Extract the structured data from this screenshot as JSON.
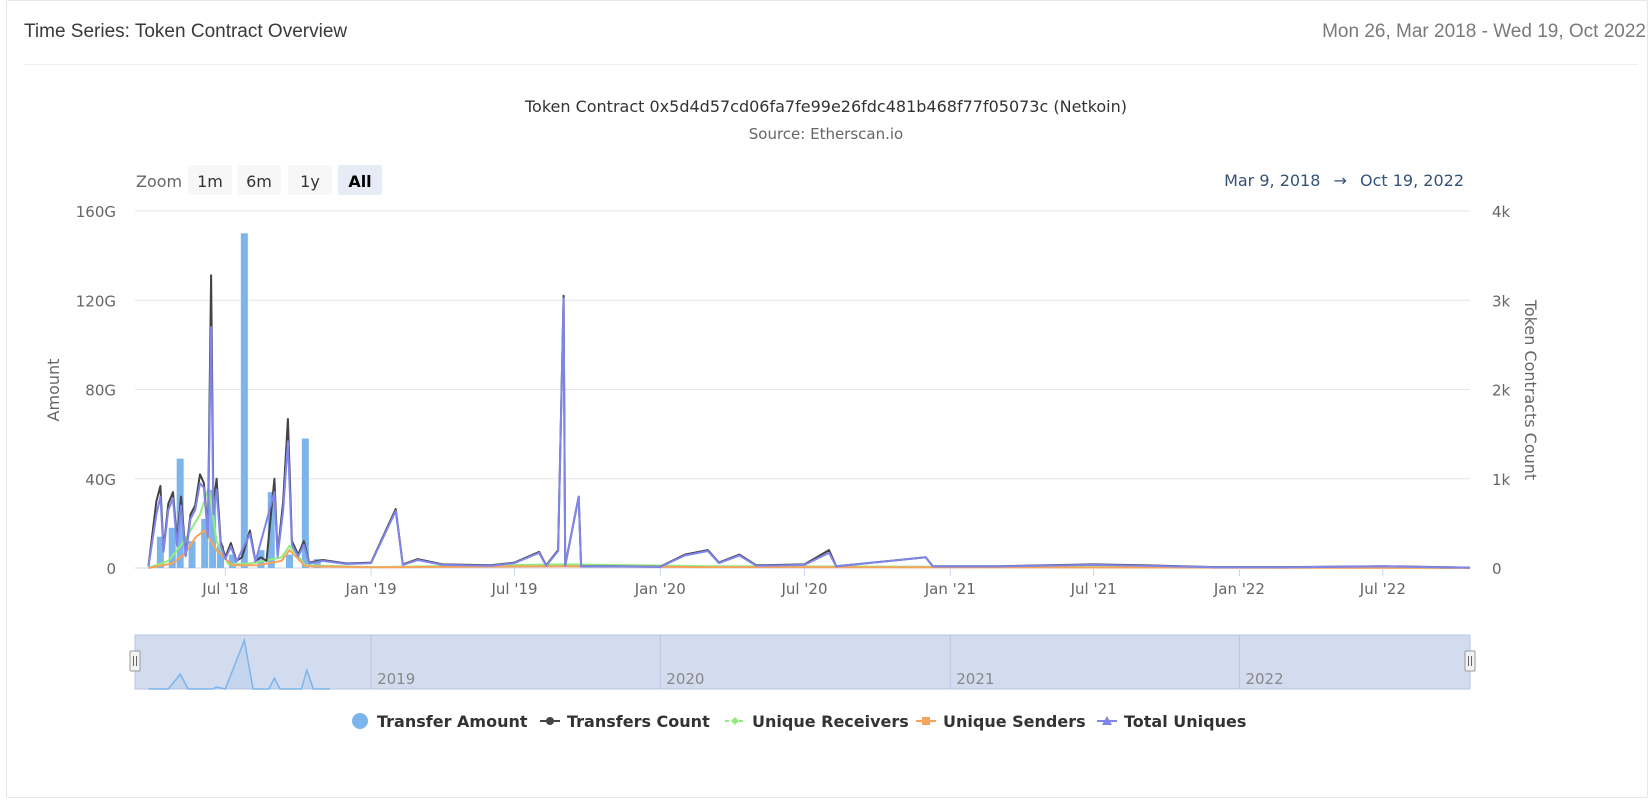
{
  "header": {
    "title": "Time Series: Token Contract Overview",
    "date_range": "Mon 26, Mar 2018 - Wed 19, Oct 2022"
  },
  "zoom": {
    "label": "Zoom",
    "buttons": [
      "1m",
      "6m",
      "1y",
      "All"
    ],
    "active": "All",
    "range_from": "Mar 9, 2018",
    "arrow": "→",
    "range_to": "Oct 19, 2022"
  },
  "colors": {
    "transfer_amount": "#7cb5ec",
    "transfers_count": "#434348",
    "unique_receivers": "#90ed7d",
    "unique_senders": "#f7a35c",
    "total_uniques": "#8085e9",
    "navigator_fill": "#d3dbee"
  },
  "chart_data": {
    "type": "line",
    "title": "Token Contract 0x5d4d57cd06fa7fe99e26fdc481b468f77f05073c (Netkoin)",
    "subtitle": "Source: Etherscan.io",
    "ylabel_left": "Amount",
    "ylabel_right": "Token Contracts Count",
    "x_range": [
      "2018-03-09",
      "2022-10-19"
    ],
    "y_left_range": [
      0,
      160
    ],
    "y_left_unit": "G",
    "y_right_range": [
      0,
      4000
    ],
    "y_left_ticks": [
      "0",
      "40G",
      "80G",
      "120G",
      "160G"
    ],
    "y_right_ticks": [
      "0",
      "1k",
      "2k",
      "3k",
      "4k"
    ],
    "x_ticks": [
      {
        "date": "2018-07-01",
        "label": "Jul '18"
      },
      {
        "date": "2019-01-01",
        "label": "Jan '19"
      },
      {
        "date": "2019-07-01",
        "label": "Jul '19"
      },
      {
        "date": "2020-01-01",
        "label": "Jan '20"
      },
      {
        "date": "2020-07-01",
        "label": "Jul '20"
      },
      {
        "date": "2021-01-01",
        "label": "Jan '21"
      },
      {
        "date": "2021-07-01",
        "label": "Jul '21"
      },
      {
        "date": "2022-01-01",
        "label": "Jan '22"
      },
      {
        "date": "2022-07-01",
        "label": "Jul '22"
      }
    ],
    "navigator_ticks": [
      {
        "date": "2019-01-01",
        "label": "2019"
      },
      {
        "date": "2020-01-01",
        "label": "2020"
      },
      {
        "date": "2021-01-01",
        "label": "2021"
      },
      {
        "date": "2022-01-01",
        "label": "2022"
      }
    ],
    "series": [
      {
        "name": "Transfer Amount",
        "kind": "column",
        "axis": "left",
        "unit": "G",
        "points": [
          [
            "2018-04-10",
            14
          ],
          [
            "2018-04-25",
            18
          ],
          [
            "2018-05-05",
            49
          ],
          [
            "2018-05-20",
            12
          ],
          [
            "2018-06-05",
            22
          ],
          [
            "2018-06-15",
            35
          ],
          [
            "2018-06-25",
            10
          ],
          [
            "2018-07-10",
            6
          ],
          [
            "2018-07-25",
            150
          ],
          [
            "2018-08-15",
            8
          ],
          [
            "2018-08-28",
            34
          ],
          [
            "2018-09-20",
            6
          ],
          [
            "2018-10-10",
            58
          ],
          [
            "2018-10-25",
            4
          ]
        ]
      },
      {
        "name": "Transfers Count",
        "kind": "line",
        "axis": "right",
        "points": [
          [
            "2018-03-26",
            20
          ],
          [
            "2018-04-05",
            750
          ],
          [
            "2018-04-10",
            920
          ],
          [
            "2018-04-14",
            200
          ],
          [
            "2018-04-20",
            720
          ],
          [
            "2018-04-26",
            850
          ],
          [
            "2018-05-01",
            300
          ],
          [
            "2018-05-06",
            800
          ],
          [
            "2018-05-12",
            150
          ],
          [
            "2018-05-18",
            600
          ],
          [
            "2018-05-24",
            700
          ],
          [
            "2018-05-30",
            1050
          ],
          [
            "2018-06-04",
            950
          ],
          [
            "2018-06-09",
            400
          ],
          [
            "2018-06-13",
            3280
          ],
          [
            "2018-06-16",
            700
          ],
          [
            "2018-06-20",
            1000
          ],
          [
            "2018-06-25",
            300
          ],
          [
            "2018-07-01",
            120
          ],
          [
            "2018-07-08",
            280
          ],
          [
            "2018-07-15",
            80
          ],
          [
            "2018-07-22",
            120
          ],
          [
            "2018-08-01",
            420
          ],
          [
            "2018-08-08",
            80
          ],
          [
            "2018-08-15",
            120
          ],
          [
            "2018-08-22",
            80
          ],
          [
            "2018-09-01",
            1000
          ],
          [
            "2018-09-05",
            150
          ],
          [
            "2018-09-12",
            750
          ],
          [
            "2018-09-18",
            1670
          ],
          [
            "2018-09-23",
            300
          ],
          [
            "2018-10-01",
            150
          ],
          [
            "2018-10-08",
            300
          ],
          [
            "2018-10-15",
            60
          ],
          [
            "2018-11-01",
            90
          ],
          [
            "2018-12-01",
            50
          ],
          [
            "2019-01-01",
            60
          ],
          [
            "2019-02-01",
            660
          ],
          [
            "2019-02-10",
            40
          ],
          [
            "2019-03-01",
            100
          ],
          [
            "2019-04-01",
            40
          ],
          [
            "2019-06-01",
            30
          ],
          [
            "2019-07-01",
            60
          ],
          [
            "2019-08-01",
            180
          ],
          [
            "2019-08-10",
            30
          ],
          [
            "2019-08-25",
            200
          ],
          [
            "2019-09-01",
            3050
          ],
          [
            "2019-09-03",
            30
          ],
          [
            "2019-09-20",
            800
          ],
          [
            "2019-09-23",
            20
          ],
          [
            "2019-11-01",
            20
          ],
          [
            "2020-01-01",
            15
          ],
          [
            "2020-02-01",
            150
          ],
          [
            "2020-03-01",
            200
          ],
          [
            "2020-03-15",
            60
          ],
          [
            "2020-04-10",
            150
          ],
          [
            "2020-05-01",
            30
          ],
          [
            "2020-07-01",
            40
          ],
          [
            "2020-08-01",
            200
          ],
          [
            "2020-08-10",
            20
          ],
          [
            "2020-12-01",
            120
          ],
          [
            "2020-12-10",
            20
          ],
          [
            "2021-03-01",
            20
          ],
          [
            "2021-07-01",
            40
          ],
          [
            "2021-09-01",
            30
          ],
          [
            "2021-12-01",
            10
          ],
          [
            "2022-03-01",
            10
          ],
          [
            "2022-07-01",
            20
          ],
          [
            "2022-10-19",
            5
          ]
        ]
      },
      {
        "name": "Unique Receivers",
        "kind": "line",
        "axis": "right",
        "points": [
          [
            "2018-03-26",
            0
          ],
          [
            "2018-04-20",
            80
          ],
          [
            "2018-05-10",
            300
          ],
          [
            "2018-05-30",
            600
          ],
          [
            "2018-06-10",
            900
          ],
          [
            "2018-06-20",
            300
          ],
          [
            "2018-07-05",
            40
          ],
          [
            "2018-08-01",
            50
          ],
          [
            "2018-09-10",
            120
          ],
          [
            "2018-09-20",
            250
          ],
          [
            "2018-10-10",
            30
          ],
          [
            "2019-01-01",
            10
          ],
          [
            "2019-09-01",
            40
          ],
          [
            "2020-03-01",
            20
          ],
          [
            "2022-10-19",
            2
          ]
        ]
      },
      {
        "name": "Unique Senders",
        "kind": "line",
        "axis": "right",
        "points": [
          [
            "2018-03-26",
            0
          ],
          [
            "2018-04-25",
            50
          ],
          [
            "2018-05-10",
            150
          ],
          [
            "2018-05-25",
            350
          ],
          [
            "2018-06-05",
            420
          ],
          [
            "2018-06-20",
            200
          ],
          [
            "2018-07-10",
            30
          ],
          [
            "2018-08-10",
            30
          ],
          [
            "2018-09-10",
            80
          ],
          [
            "2018-09-20",
            200
          ],
          [
            "2018-10-10",
            20
          ],
          [
            "2019-01-01",
            8
          ],
          [
            "2019-09-01",
            20
          ],
          [
            "2020-03-01",
            10
          ],
          [
            "2022-10-19",
            1
          ]
        ]
      },
      {
        "name": "Total Uniques",
        "kind": "line",
        "axis": "right",
        "points": [
          [
            "2018-03-26",
            15
          ],
          [
            "2018-04-05",
            600
          ],
          [
            "2018-04-10",
            800
          ],
          [
            "2018-04-14",
            180
          ],
          [
            "2018-04-20",
            650
          ],
          [
            "2018-04-26",
            780
          ],
          [
            "2018-05-01",
            250
          ],
          [
            "2018-05-06",
            700
          ],
          [
            "2018-05-12",
            130
          ],
          [
            "2018-05-18",
            550
          ],
          [
            "2018-05-24",
            650
          ],
          [
            "2018-05-30",
            950
          ],
          [
            "2018-06-04",
            900
          ],
          [
            "2018-06-09",
            350
          ],
          [
            "2018-06-13",
            2700
          ],
          [
            "2018-06-16",
            600
          ],
          [
            "2018-06-20",
            880
          ],
          [
            "2018-06-25",
            260
          ],
          [
            "2018-07-01",
            100
          ],
          [
            "2018-07-08",
            240
          ],
          [
            "2018-07-15",
            70
          ],
          [
            "2018-08-01",
            380
          ],
          [
            "2018-08-08",
            70
          ],
          [
            "2018-09-01",
            850
          ],
          [
            "2018-09-05",
            130
          ],
          [
            "2018-09-12",
            650
          ],
          [
            "2018-09-18",
            1420
          ],
          [
            "2018-09-23",
            260
          ],
          [
            "2018-10-01",
            130
          ],
          [
            "2018-10-08",
            260
          ],
          [
            "2018-10-15",
            50
          ],
          [
            "2018-11-01",
            80
          ],
          [
            "2018-12-01",
            45
          ],
          [
            "2019-01-01",
            55
          ],
          [
            "2019-02-01",
            640
          ],
          [
            "2019-02-10",
            35
          ],
          [
            "2019-03-01",
            90
          ],
          [
            "2019-04-01",
            35
          ],
          [
            "2019-06-01",
            25
          ],
          [
            "2019-07-01",
            55
          ],
          [
            "2019-08-01",
            170
          ],
          [
            "2019-08-10",
            25
          ],
          [
            "2019-08-25",
            190
          ],
          [
            "2019-09-01",
            3020
          ],
          [
            "2019-09-03",
            25
          ],
          [
            "2019-09-20",
            800
          ],
          [
            "2019-09-23",
            18
          ],
          [
            "2019-11-01",
            18
          ],
          [
            "2020-01-01",
            12
          ],
          [
            "2020-02-01",
            140
          ],
          [
            "2020-03-01",
            190
          ],
          [
            "2020-03-15",
            55
          ],
          [
            "2020-04-10",
            140
          ],
          [
            "2020-05-01",
            25
          ],
          [
            "2020-07-01",
            35
          ],
          [
            "2020-08-01",
            170
          ],
          [
            "2020-08-10",
            18
          ],
          [
            "2020-12-01",
            120
          ],
          [
            "2020-12-10",
            18
          ],
          [
            "2021-03-01",
            18
          ],
          [
            "2021-07-01",
            35
          ],
          [
            "2021-09-01",
            25
          ],
          [
            "2021-12-01",
            8
          ],
          [
            "2022-03-01",
            8
          ],
          [
            "2022-07-01",
            18
          ],
          [
            "2022-10-19",
            4
          ]
        ]
      }
    ],
    "navigator_series": [
      [
        "2018-03-26",
        0
      ],
      [
        "2018-04-20",
        0
      ],
      [
        "2018-05-05",
        22
      ],
      [
        "2018-05-15",
        0
      ],
      [
        "2018-06-15",
        0
      ],
      [
        "2018-06-20",
        3
      ],
      [
        "2018-07-01",
        0
      ],
      [
        "2018-07-25",
        72
      ],
      [
        "2018-08-05",
        0
      ],
      [
        "2018-08-25",
        0
      ],
      [
        "2018-09-01",
        16
      ],
      [
        "2018-09-08",
        0
      ],
      [
        "2018-10-05",
        0
      ],
      [
        "2018-10-12",
        28
      ],
      [
        "2018-10-20",
        0
      ],
      [
        "2018-11-10",
        0
      ]
    ],
    "legend": [
      "Transfer Amount",
      "Transfers Count",
      "Unique Receivers",
      "Unique Senders",
      "Total Uniques"
    ],
    "legend_position": "bottom-center",
    "grid": true
  }
}
